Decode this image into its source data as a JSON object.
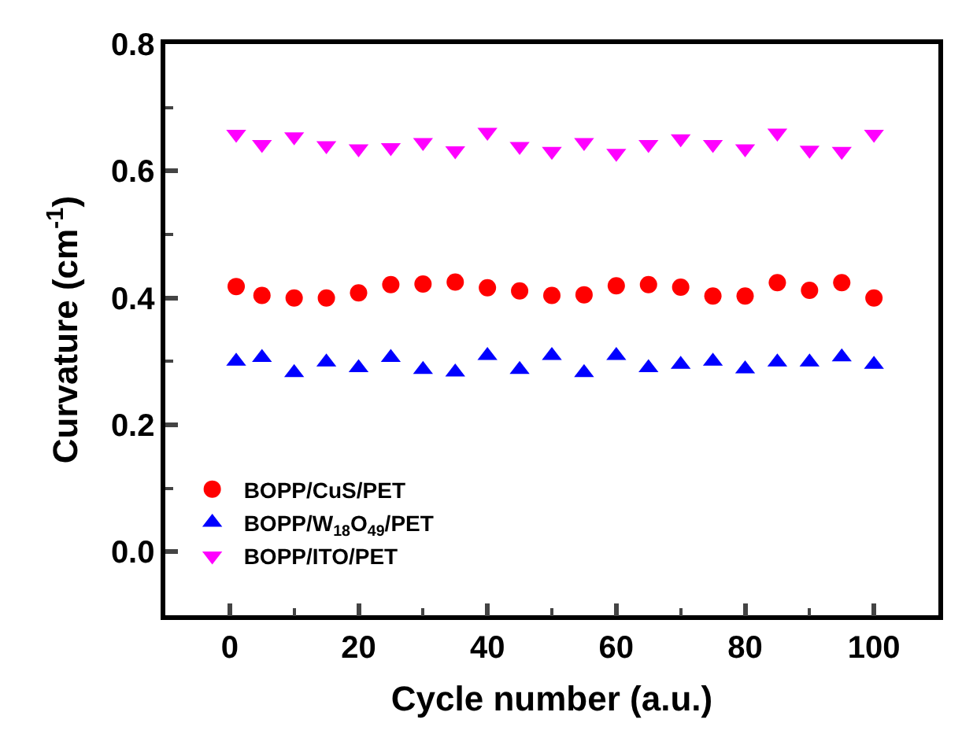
{
  "chart_data": {
    "type": "scatter",
    "xlabel": "Cycle number (a.u.)",
    "ylabel": "Curvature (cm$^{-1}$)",
    "x": [
      1,
      5,
      10,
      15,
      20,
      25,
      30,
      35,
      40,
      45,
      50,
      55,
      60,
      65,
      70,
      75,
      80,
      85,
      90,
      95,
      100
    ],
    "series": [
      {
        "name": "BOPP/CuS/PET",
        "color": "#ff0000",
        "marker": "circle",
        "values": [
          0.418,
          0.404,
          0.4,
          0.4,
          0.408,
          0.421,
          0.422,
          0.425,
          0.416,
          0.411,
          0.404,
          0.405,
          0.419,
          0.421,
          0.417,
          0.403,
          0.403,
          0.424,
          0.412,
          0.424,
          0.4
        ]
      },
      {
        "name": "BOPP/W$_{18}$O$_{49}$/PET",
        "color": "#0000ff",
        "marker": "triangle",
        "values": [
          0.3,
          0.306,
          0.282,
          0.299,
          0.29,
          0.306,
          0.287,
          0.283,
          0.309,
          0.287,
          0.309,
          0.282,
          0.309,
          0.29,
          0.295,
          0.3,
          0.288,
          0.299,
          0.299,
          0.307,
          0.295
        ]
      },
      {
        "name": "BOPP/ITO/PET",
        "color": "#ff00ff",
        "marker": "triangle-down",
        "values": [
          0.658,
          0.642,
          0.654,
          0.64,
          0.635,
          0.637,
          0.645,
          0.632,
          0.661,
          0.639,
          0.631,
          0.645,
          0.628,
          0.642,
          0.651,
          0.642,
          0.635,
          0.66,
          0.633,
          0.631,
          0.658
        ]
      }
    ],
    "xlim": [
      -10,
      110
    ],
    "xticks": [
      0,
      20,
      40,
      60,
      80,
      100
    ],
    "ylim": [
      -0.1,
      0.8
    ],
    "yticks": [
      {
        "value": 0.0,
        "label": "0.0"
      },
      0.2,
      0.4,
      0.6,
      0.8
    ],
    "legend": "bottom left"
  }
}
